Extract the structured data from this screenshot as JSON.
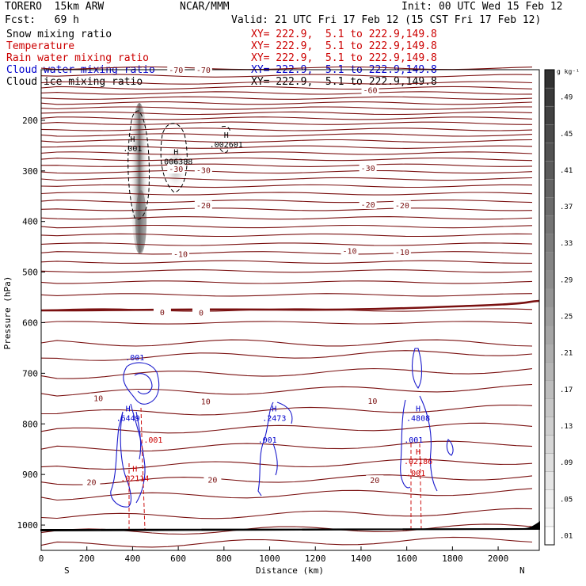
{
  "header": {
    "model": "TORERO  15km ARW",
    "org": "NCAR/MMM",
    "init": "Init: 00 UTC Wed 15 Feb 12",
    "fcst": "Fcst:   69 h",
    "valid": "Valid: 21 UTC Fri 17 Feb 12 (15 CST Fri 17 Feb 12)"
  },
  "fields": [
    {
      "name": "Snow mixing ratio",
      "xy": "XY= 222.9,  5.1 to 222.9,149.8",
      "color": "#000000"
    },
    {
      "name": "Temperature",
      "xy": "XY= 222.9,  5.1 to 222.9,149.8",
      "color": "#cc0000"
    },
    {
      "name": "Rain water mixing ratio",
      "xy": "XY= 222.9,  5.1 to 222.9,149.8",
      "color": "#cc0000"
    },
    {
      "name": "Cloud water mixing ratio",
      "xy": "XY= 222.9,  5.1 to 222.9,149.8",
      "color": "#0000cc"
    },
    {
      "name": "Cloud ice mixing ratio",
      "xy": "XY= 222.9,  5.1 to 222.9,149.8",
      "color": "#000000"
    }
  ],
  "colorbar": {
    "unit": "g kg⁻¹",
    "labels": [
      ".01",
      ".05",
      ".09",
      ".13",
      ".17",
      ".21",
      ".25",
      ".29",
      ".33",
      ".37",
      ".41",
      ".45",
      ".49"
    ]
  },
  "chart_data": {
    "type": "cross-section",
    "xlabel": "Distance (km)",
    "ylabel": "Pressure (hPa)",
    "xlim": [
      0,
      2180
    ],
    "ylim": [
      1050,
      100
    ],
    "x_ticks": [
      "0",
      "200",
      "400",
      "600",
      "800",
      "1000",
      "1200",
      "1400",
      "1600",
      "1800",
      "2000"
    ],
    "y_ticks": [
      "200",
      "300",
      "400",
      "500",
      "600",
      "700",
      "800",
      "900",
      "1000"
    ],
    "end_labels": {
      "left": "S",
      "right": "N"
    },
    "temperature_labels": [
      {
        "text": "-70",
        "x": 590,
        "p": 100
      },
      {
        "text": "-70",
        "x": 710,
        "p": 100
      },
      {
        "text": "-60",
        "x": 1440,
        "p": 140
      },
      {
        "text": "-30",
        "x": 590,
        "p": 296
      },
      {
        "text": "-30",
        "x": 710,
        "p": 298
      },
      {
        "text": "-30",
        "x": 1430,
        "p": 294
      },
      {
        "text": "-20",
        "x": 710,
        "p": 368
      },
      {
        "text": "-20",
        "x": 1430,
        "p": 366
      },
      {
        "text": "-20",
        "x": 1580,
        "p": 368
      },
      {
        "text": "-10",
        "x": 610,
        "p": 464
      },
      {
        "text": "-10",
        "x": 1350,
        "p": 458
      },
      {
        "text": "-10",
        "x": 1580,
        "p": 460
      },
      {
        "text": "0",
        "x": 530,
        "p": 579
      },
      {
        "text": "0",
        "x": 700,
        "p": 580
      },
      {
        "text": "10",
        "x": 250,
        "p": 749
      },
      {
        "text": "10",
        "x": 720,
        "p": 755
      },
      {
        "text": "10",
        "x": 1450,
        "p": 754
      },
      {
        "text": "20",
        "x": 220,
        "p": 915
      },
      {
        "text": "20",
        "x": 750,
        "p": 910
      },
      {
        "text": "20",
        "x": 1460,
        "p": 911
      }
    ],
    "max_labels": [
      {
        "h": "H",
        "value": ".001",
        "x": 400,
        "p": 258,
        "color": "#000000"
      },
      {
        "h": "H",
        "value": ".006388",
        "x": 590,
        "p": 284,
        "color": "#000000"
      },
      {
        "h": "H",
        "value": ".002601",
        "x": 810,
        "p": 250,
        "color": "#000000"
      },
      {
        "h": "H",
        "value": ".6449",
        "x": 380,
        "p": 791,
        "color": "#0000cc"
      },
      {
        "h": "H",
        "value": ".2473",
        "x": 1020,
        "p": 791,
        "color": "#0000cc"
      },
      {
        "h": "H",
        "value": ".4808",
        "x": 1650,
        "p": 791,
        "color": "#0000cc"
      },
      {
        "h": "H",
        "value": ".02114",
        "x": 410,
        "p": 910,
        "color": "#cc0000"
      },
      {
        "h": "H",
        "value": ".02186",
        "x": 1650,
        "p": 876,
        "color": "#cc0000"
      }
    ],
    "small_labels": [
      {
        "text": ".001",
        "x": 410,
        "p": 668,
        "color": "#0000cc"
      },
      {
        "text": ".001",
        "x": 990,
        "p": 831,
        "color": "#0000cc"
      },
      {
        "text": ".001",
        "x": 1630,
        "p": 831,
        "color": "#0000cc"
      },
      {
        "text": ".001",
        "x": 490,
        "p": 831,
        "color": "#cc0000"
      },
      {
        "text": ".001",
        "x": 1640,
        "p": 897,
        "color": "#cc0000"
      }
    ]
  }
}
